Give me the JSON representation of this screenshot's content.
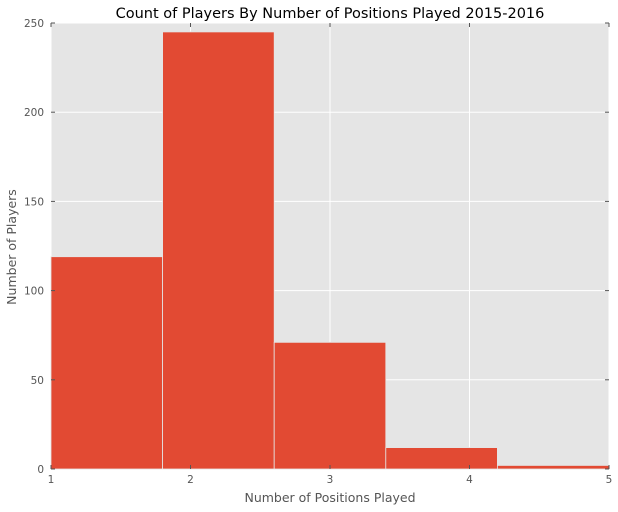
{
  "chart_data": {
    "type": "bar",
    "title": "Count of Players By Number of Positions Played 2015-2016",
    "xlabel": "Number of Positions Played",
    "ylabel": "Number of Players",
    "xlim": [
      1,
      5
    ],
    "ylim": [
      0,
      250
    ],
    "xticks": [
      "1",
      "2",
      "3",
      "4",
      "5"
    ],
    "yticks": [
      "0",
      "50",
      "100",
      "150",
      "200",
      "250"
    ],
    "bins": [
      {
        "x0": 1.0,
        "x1": 1.8,
        "value": 119
      },
      {
        "x0": 1.8,
        "x1": 2.6,
        "value": 245
      },
      {
        "x0": 2.6,
        "x1": 3.4,
        "value": 71
      },
      {
        "x0": 3.4,
        "x1": 4.2,
        "value": 12
      },
      {
        "x0": 4.2,
        "x1": 5.0,
        "value": 2
      }
    ],
    "grid": true,
    "bar_color": "#E24A33",
    "plot_background": "#E5E5E5",
    "grid_color": "#FFFFFF"
  }
}
